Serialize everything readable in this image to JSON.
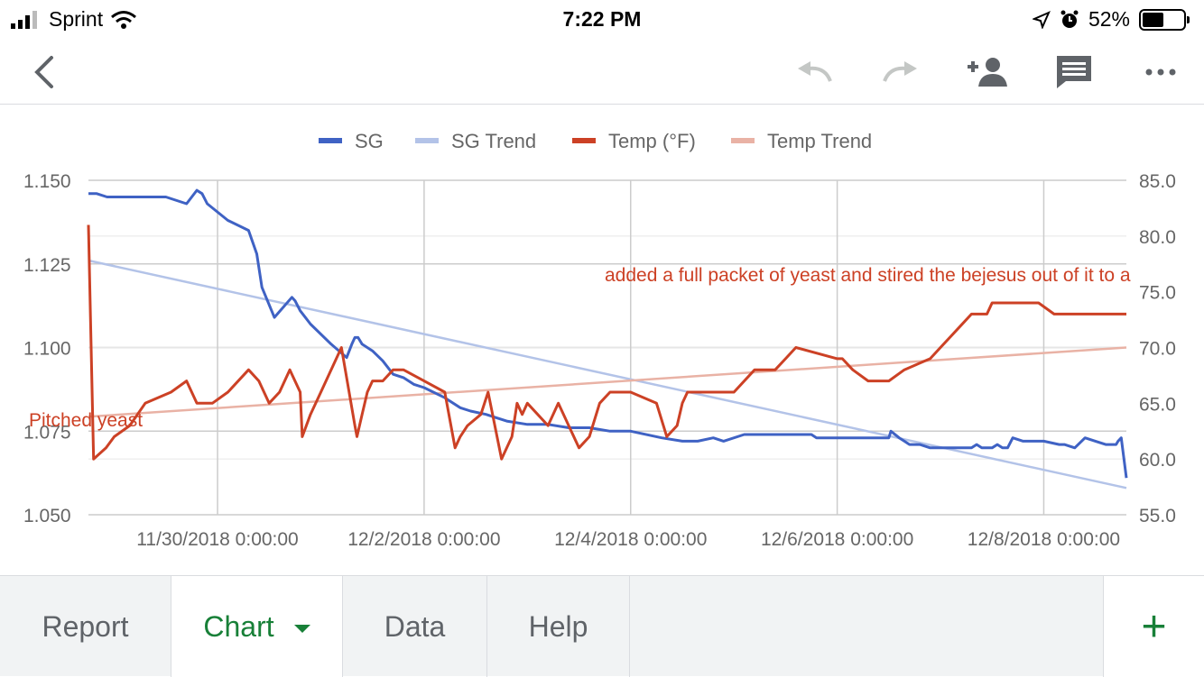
{
  "status_bar": {
    "carrier": "Sprint",
    "time": "7:22 PM",
    "battery_text": "52%",
    "battery_level": 0.52
  },
  "toolbar": {
    "icons": [
      "back-icon",
      "undo-icon",
      "redo-icon",
      "share-icon",
      "comment-icon",
      "more-icon"
    ]
  },
  "colors": {
    "sg": "#3f62c4",
    "sg_trend": "#b3c3e8",
    "temp": "#cc4125",
    "temp_trend": "#e9b2a5",
    "active_tab": "#188038"
  },
  "chart_data": {
    "type": "line",
    "legend": [
      "SG",
      "SG Trend",
      "Temp (°F)",
      "Temp Trend"
    ],
    "legend_position": "top",
    "grid": true,
    "x_ticks": [
      "11/30/2018 0:00:00",
      "12/2/2018 0:00:00",
      "12/4/2018 0:00:00",
      "12/6/2018 0:00:00",
      "12/8/2018 0:00:00"
    ],
    "x_unit": "days since 11/30/2018 0:00",
    "xlim": [
      -1.25,
      8.8
    ],
    "y_left": {
      "ylim": [
        1.05,
        1.15
      ],
      "ticks": [
        "1.050",
        "1.075",
        "1.100",
        "1.125",
        "1.150"
      ]
    },
    "y_right": {
      "ylim": [
        55,
        85
      ],
      "ticks": [
        "55.0",
        "60.0",
        "65.0",
        "70.0",
        "75.0",
        "80.0",
        "85.0"
      ]
    },
    "series": [
      {
        "name": "SG",
        "axis": "left",
        "x": [
          -1.25,
          -1.17,
          -1.07,
          -0.5,
          -0.3,
          -0.2,
          -0.15,
          -0.1,
          0.1,
          0.3,
          0.38,
          0.43,
          0.55,
          0.72,
          0.75,
          0.8,
          0.85,
          0.9,
          1.1,
          1.25,
          1.3,
          1.33,
          1.36,
          1.4,
          1.5,
          1.6,
          1.7,
          1.8,
          1.9,
          2.0,
          2.2,
          2.35,
          2.45,
          2.6,
          2.7,
          2.8,
          3.0,
          3.2,
          3.4,
          3.6,
          3.8,
          4.0,
          4.3,
          4.5,
          4.6,
          4.65,
          4.8,
          4.9,
          5.1,
          5.4,
          5.6,
          5.65,
          5.7,
          5.75,
          5.8,
          5.9,
          6.0,
          6.5,
          6.52,
          6.6,
          6.65,
          6.7,
          6.8,
          6.9,
          7.0,
          7.2,
          7.3,
          7.35,
          7.4,
          7.5,
          7.55,
          7.6,
          7.65,
          7.7,
          7.8,
          7.9,
          8.0,
          8.15,
          8.2,
          8.3,
          8.4,
          8.5,
          8.6,
          8.7,
          8.72,
          8.75,
          8.8
        ],
        "y": [
          1.146,
          1.146,
          1.145,
          1.145,
          1.143,
          1.147,
          1.146,
          1.143,
          1.138,
          1.135,
          1.128,
          1.118,
          1.109,
          1.115,
          1.114,
          1.111,
          1.109,
          1.107,
          1.101,
          1.097,
          1.101,
          1.103,
          1.103,
          1.101,
          1.099,
          1.096,
          1.092,
          1.091,
          1.089,
          1.088,
          1.085,
          1.082,
          1.081,
          1.08,
          1.079,
          1.078,
          1.077,
          1.077,
          1.076,
          1.076,
          1.075,
          1.075,
          1.073,
          1.072,
          1.072,
          1.072,
          1.073,
          1.072,
          1.074,
          1.074,
          1.074,
          1.074,
          1.074,
          1.074,
          1.073,
          1.073,
          1.073,
          1.073,
          1.075,
          1.073,
          1.072,
          1.071,
          1.071,
          1.07,
          1.07,
          1.07,
          1.07,
          1.071,
          1.07,
          1.07,
          1.071,
          1.07,
          1.07,
          1.073,
          1.072,
          1.072,
          1.072,
          1.071,
          1.071,
          1.07,
          1.073,
          1.072,
          1.071,
          1.071,
          1.072,
          1.073,
          1.061
        ]
      },
      {
        "name": "SG Trend",
        "axis": "left",
        "x": [
          -1.25,
          8.8
        ],
        "y": [
          1.126,
          1.058
        ]
      },
      {
        "name": "Temp (°F)",
        "axis": "right",
        "x": [
          -1.25,
          -1.2,
          -1.08,
          -1.0,
          -0.85,
          -0.7,
          -0.45,
          -0.3,
          -0.2,
          -0.05,
          0.1,
          0.3,
          0.4,
          0.5,
          0.6,
          0.7,
          0.8,
          0.82,
          0.9,
          1.0,
          1.2,
          1.33,
          1.35,
          1.4,
          1.45,
          1.5,
          1.6,
          1.7,
          1.8,
          2.0,
          2.2,
          2.3,
          2.35,
          2.42,
          2.55,
          2.62,
          2.75,
          2.85,
          2.9,
          2.95,
          3.0,
          3.2,
          3.3,
          3.5,
          3.6,
          3.7,
          3.8,
          4.0,
          4.25,
          4.35,
          4.45,
          4.5,
          4.55,
          5.0,
          5.2,
          5.3,
          5.35,
          5.4,
          5.5,
          5.6,
          6.0,
          6.05,
          6.15,
          6.3,
          6.4,
          6.5,
          6.65,
          6.9,
          7.0,
          7.1,
          7.2,
          7.3,
          7.35,
          7.45,
          7.5,
          7.55,
          7.6,
          7.7,
          7.8,
          7.95,
          8.1,
          8.2,
          8.3,
          8.35,
          8.45,
          8.55,
          8.8
        ],
        "y": [
          81,
          60,
          61,
          62,
          63,
          65,
          66,
          67,
          65,
          65,
          66,
          68,
          67,
          65,
          66,
          68,
          66,
          62,
          64,
          66,
          70,
          63,
          62,
          64,
          66,
          67,
          67,
          68,
          68,
          67,
          66,
          61,
          62,
          63,
          64,
          66,
          60,
          62,
          65,
          64,
          65,
          63,
          65,
          61,
          62,
          65,
          66,
          66,
          65,
          62,
          63,
          65,
          66,
          66,
          68,
          68,
          68,
          68,
          69,
          70,
          69,
          69,
          68,
          67,
          67,
          67,
          68,
          69,
          70,
          71,
          72,
          73,
          73,
          73,
          74,
          74,
          74,
          74,
          74,
          74,
          73,
          73,
          73,
          73,
          73,
          73,
          73
        ]
      },
      {
        "name": "Temp Trend",
        "axis": "right",
        "x": [
          -1.25,
          8.8
        ],
        "y": [
          63.8,
          70.0
        ]
      }
    ],
    "annotations": [
      {
        "text": "Pitched yeast",
        "series": "Temp (°F)",
        "x": -1.25
      },
      {
        "text": "added a full packet of yeast and stired the bejesus out of it to a",
        "series": "Temp (°F)",
        "x": 1.35
      }
    ]
  },
  "tabs": {
    "report": "Report",
    "chart": "Chart",
    "data": "Data",
    "help": "Help",
    "add": "+"
  }
}
